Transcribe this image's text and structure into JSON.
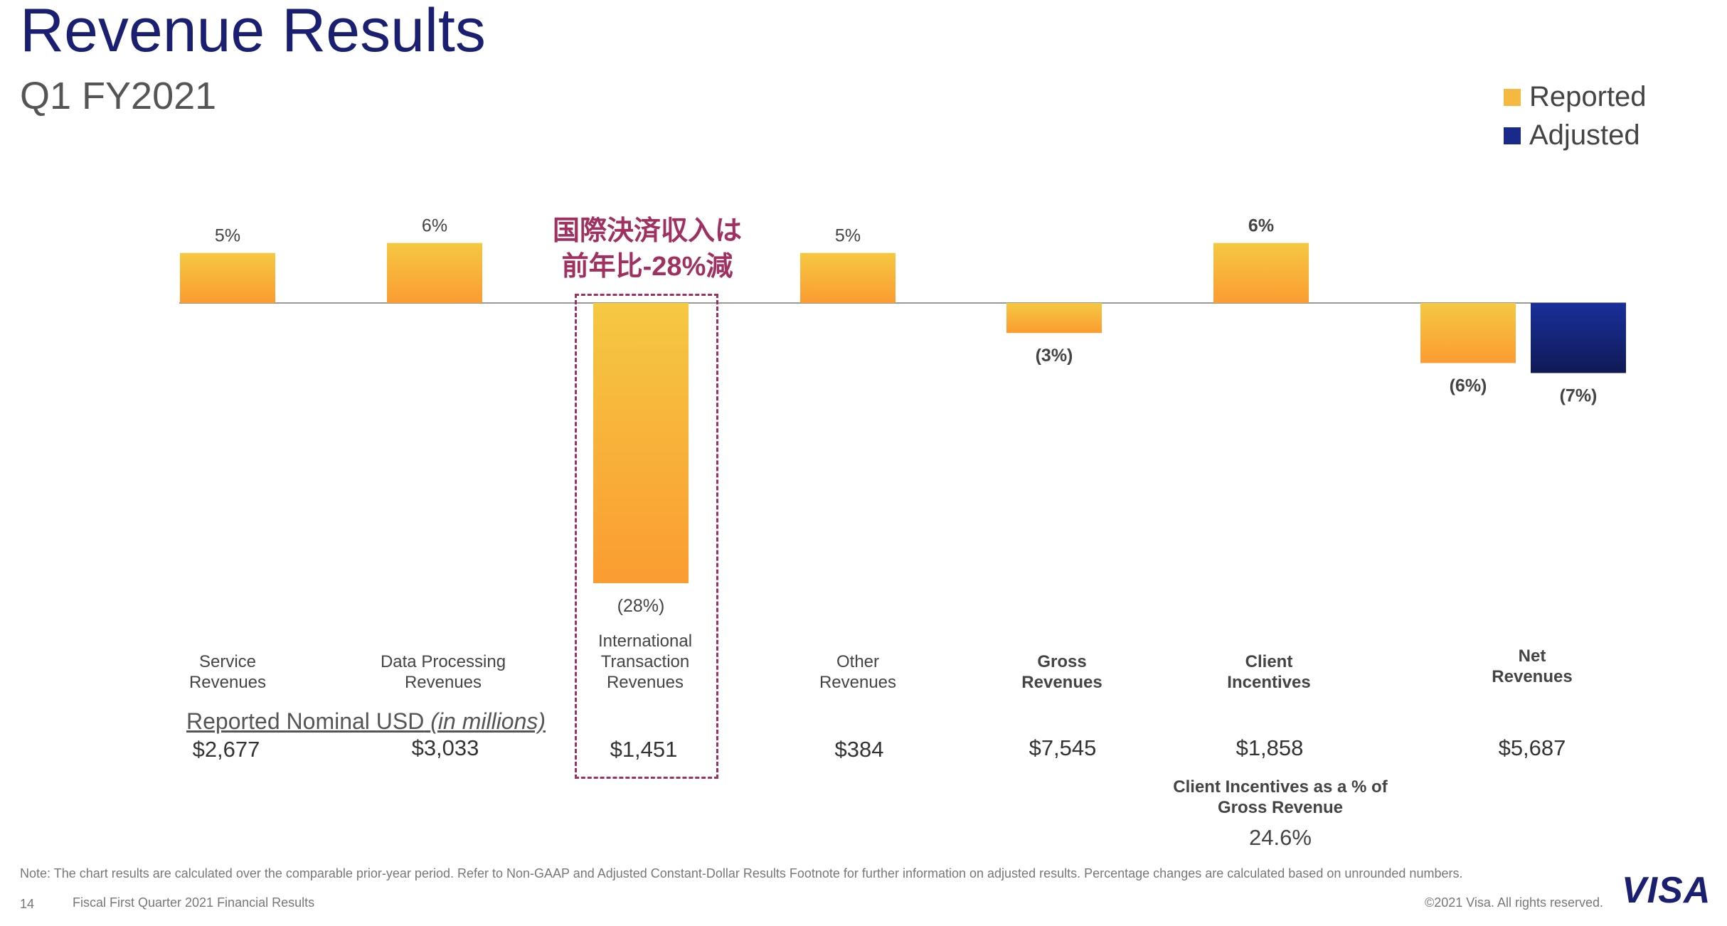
{
  "header": {
    "title": "Revenue Results",
    "subtitle": "Q1 FY2021"
  },
  "legend": [
    {
      "label": "Reported",
      "color": "#f5b841"
    },
    {
      "label": "Adjusted",
      "color": "#1a2a8a"
    }
  ],
  "annotation": {
    "line1": "国際決済収入は",
    "line2": "前年比-28%減",
    "color": "#a03060"
  },
  "chart_data": {
    "type": "bar",
    "categories": [
      "Service Revenues",
      "Data Processing Revenues",
      "International Transaction Revenues",
      "Other Revenues",
      "Gross Revenues",
      "Client Incentives",
      "Net Revenues"
    ],
    "series": [
      {
        "name": "Reported",
        "values": [
          5,
          6,
          -28,
          5,
          -3,
          6,
          -6
        ],
        "labels": [
          "5%",
          "6%",
          "(28%)",
          "5%",
          "(3%)",
          "6%",
          "(6%)"
        ]
      },
      {
        "name": "Adjusted",
        "values": [
          null,
          null,
          null,
          null,
          null,
          null,
          -7
        ],
        "labels": [
          "",
          "",
          "",
          "",
          "",
          "",
          "(7%)"
        ]
      }
    ],
    "bold_categories": [
      false,
      false,
      false,
      false,
      true,
      true,
      true
    ],
    "ylim": [
      -28,
      6
    ],
    "grid": false,
    "legend_position": "top-right"
  },
  "amounts": {
    "label_main": "Reported Nominal USD",
    "label_unit": "(in millions)",
    "values": [
      "$2,677",
      "$3,033",
      "$1,451",
      "$384",
      "$7,545",
      "$1,858",
      "$5,687"
    ]
  },
  "client_incentives_pct": {
    "label_line1": "Client Incentives as a % of",
    "label_line2": "Gross Revenue",
    "value": "24.6%"
  },
  "footer": {
    "note": "Note: The chart results are calculated over the comparable prior-year period. Refer to Non-GAAP and Adjusted Constant-Dollar Results Footnote for further information on adjusted results. Percentage changes are calculated based on unrounded numbers.",
    "page_number": "14",
    "title": "Fiscal First Quarter 2021 Financial Results",
    "copyright": "©2021 Visa. All rights reserved.",
    "logo": "VISA"
  }
}
